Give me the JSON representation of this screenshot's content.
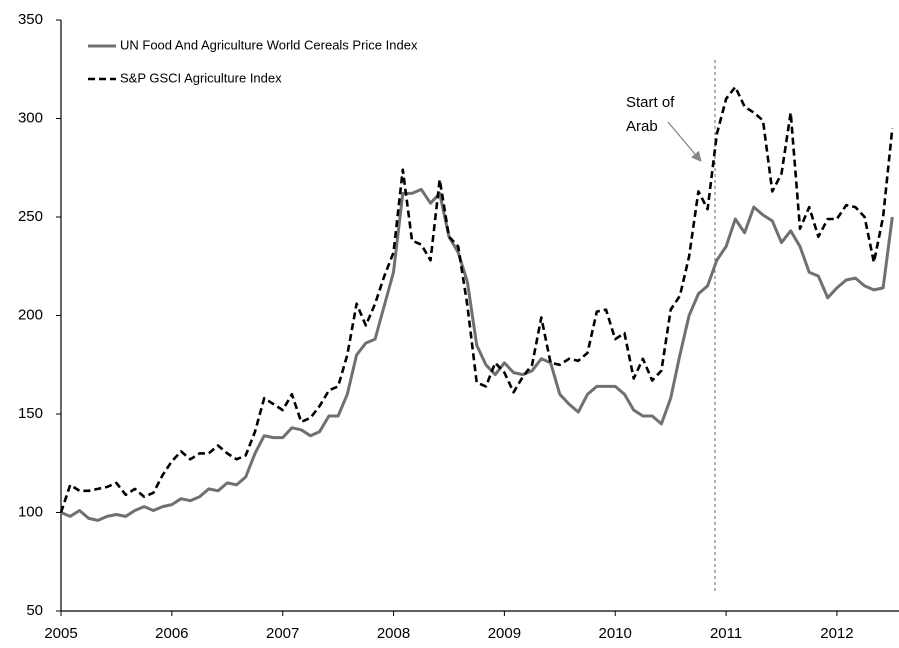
{
  "chart_data": {
    "type": "line",
    "x": [
      2005,
      2005.0833,
      2005.1667,
      2005.25,
      2005.3333,
      2005.4167,
      2005.5,
      2005.5833,
      2005.6667,
      2005.75,
      2005.8333,
      2005.9167,
      2006,
      2006.0833,
      2006.1667,
      2006.25,
      2006.3333,
      2006.4167,
      2006.5,
      2006.5833,
      2006.6667,
      2006.75,
      2006.8333,
      2006.9167,
      2007,
      2007.0833,
      2007.1667,
      2007.25,
      2007.3333,
      2007.4167,
      2007.5,
      2007.5833,
      2007.6667,
      2007.75,
      2007.8333,
      2007.9167,
      2008,
      2008.0833,
      2008.1667,
      2008.25,
      2008.3333,
      2008.4167,
      2008.5,
      2008.5833,
      2008.6667,
      2008.75,
      2008.8333,
      2008.9167,
      2009,
      2009.0833,
      2009.1667,
      2009.25,
      2009.3333,
      2009.4167,
      2009.5,
      2009.5833,
      2009.6667,
      2009.75,
      2009.8333,
      2009.9167,
      2010,
      2010.0833,
      2010.1667,
      2010.25,
      2010.3333,
      2010.4167,
      2010.5,
      2010.5833,
      2010.6667,
      2010.75,
      2010.8333,
      2010.9167,
      2011,
      2011.0833,
      2011.1667,
      2011.25,
      2011.3333,
      2011.4167,
      2011.5,
      2011.5833,
      2011.6667,
      2011.75,
      2011.8333,
      2011.9167,
      2012,
      2012.0833,
      2012.1667,
      2012.25,
      2012.3333,
      2012.4167,
      2012.5
    ],
    "series": [
      {
        "name": "UN Food And Agriculture World Cereals Price Index",
        "color": "#707070",
        "dash": false,
        "values": [
          100,
          98,
          101,
          97,
          96,
          98,
          99,
          98,
          101,
          103,
          101,
          103,
          104,
          107,
          106,
          108,
          112,
          111,
          115,
          114,
          118,
          130,
          139,
          138,
          138,
          143,
          142,
          139,
          141,
          149,
          149,
          160,
          180,
          186,
          188,
          205,
          222,
          262,
          262,
          264,
          257,
          262,
          240,
          232,
          217,
          185,
          175,
          170,
          176,
          171,
          170,
          172,
          178,
          176,
          160,
          155,
          151,
          160,
          164,
          164,
          164,
          160,
          152,
          149,
          149,
          145,
          158,
          180,
          200,
          211,
          215,
          228,
          235,
          249,
          242,
          255,
          251,
          248,
          237,
          243,
          235,
          222,
          220,
          209,
          214,
          218,
          219,
          215,
          213,
          214,
          250
        ]
      },
      {
        "name": "S&P GSCI Agriculture Index",
        "color": "#000000",
        "dash": true,
        "values": [
          100,
          114,
          111,
          111,
          112,
          113,
          115,
          109,
          112,
          108,
          110,
          119,
          126,
          131,
          127,
          130,
          130,
          134,
          130,
          127,
          129,
          141,
          158,
          155,
          152,
          160,
          146,
          148,
          154,
          162,
          164,
          180,
          206,
          195,
          206,
          220,
          232,
          274,
          238,
          236,
          228,
          269,
          240,
          235,
          205,
          166,
          164,
          176,
          171,
          161,
          169,
          175,
          199,
          176,
          175,
          178,
          177,
          181,
          202,
          203,
          188,
          191,
          168,
          178,
          167,
          172,
          203,
          210,
          230,
          263,
          254,
          292,
          310,
          316,
          306,
          303,
          299,
          263,
          272,
          303,
          244,
          255,
          240,
          249,
          249,
          256,
          255,
          250,
          227,
          250,
          295
        ]
      }
    ],
    "xlim": [
      2005,
      2012.56
    ],
    "xticks": [
      2005,
      2006,
      2007,
      2008,
      2009,
      2010,
      2011,
      2012
    ],
    "ylim": [
      50,
      350
    ],
    "yticks": [
      50,
      100,
      150,
      200,
      250,
      300,
      350
    ],
    "grid": false,
    "legend": "upper left",
    "annotation": {
      "x": 2010.9,
      "lines": [
        "Start of",
        "Arab"
      ]
    }
  }
}
